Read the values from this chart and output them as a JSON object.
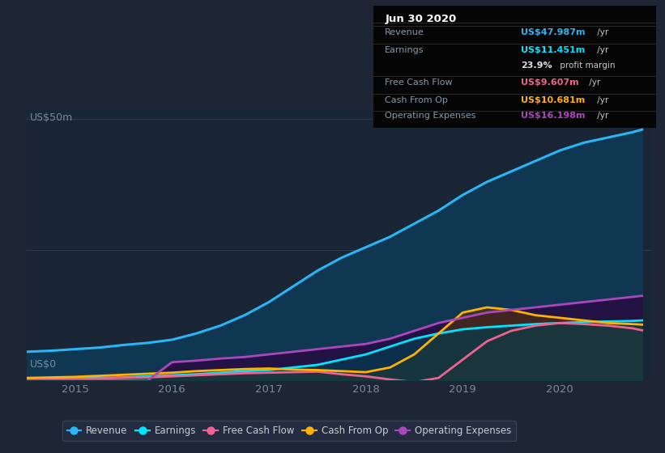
{
  "bg_color": "#1e2535",
  "plot_bg_color": "#1a2535",
  "grid_color": "#2a3a50",
  "ylabel": "US$50m",
  "ylabel0": "US$0",
  "ylim": [
    0,
    52
  ],
  "xlim": [
    2014.5,
    2020.95
  ],
  "xticks": [
    2015,
    2016,
    2017,
    2018,
    2019,
    2020
  ],
  "series": {
    "revenue": {
      "x": [
        2014.5,
        2014.75,
        2015.0,
        2015.25,
        2015.5,
        2015.75,
        2016.0,
        2016.25,
        2016.5,
        2016.75,
        2017.0,
        2017.25,
        2017.5,
        2017.75,
        2018.0,
        2018.25,
        2018.5,
        2018.75,
        2019.0,
        2019.25,
        2019.5,
        2019.75,
        2020.0,
        2020.25,
        2020.5,
        2020.75,
        2020.85
      ],
      "y": [
        5.5,
        5.7,
        6.0,
        6.3,
        6.8,
        7.2,
        7.8,
        9.0,
        10.5,
        12.5,
        15.0,
        18.0,
        21.0,
        23.5,
        25.5,
        27.5,
        30.0,
        32.5,
        35.5,
        38.0,
        40.0,
        42.0,
        44.0,
        45.5,
        46.5,
        47.5,
        48.0
      ],
      "color": "#29b6f6",
      "fill_alpha": 0.7,
      "lw": 2.2
    },
    "earnings": {
      "x": [
        2014.5,
        2014.75,
        2015.0,
        2015.25,
        2015.5,
        2015.75,
        2016.0,
        2016.25,
        2016.5,
        2016.75,
        2017.0,
        2017.25,
        2017.5,
        2017.75,
        2018.0,
        2018.25,
        2018.5,
        2018.75,
        2019.0,
        2019.25,
        2019.5,
        2019.75,
        2020.0,
        2020.25,
        2020.5,
        2020.75,
        2020.85
      ],
      "y": [
        0.3,
        0.35,
        0.4,
        0.5,
        0.6,
        0.8,
        1.0,
        1.2,
        1.5,
        1.8,
        2.0,
        2.5,
        3.0,
        4.0,
        5.0,
        6.5,
        8.0,
        9.0,
        9.8,
        10.2,
        10.5,
        10.8,
        11.0,
        11.2,
        11.3,
        11.4,
        11.5
      ],
      "color": "#00e5ff",
      "fill_alpha": 0.5,
      "lw": 2.0
    },
    "free_cash_flow": {
      "x": [
        2014.5,
        2014.75,
        2015.0,
        2015.25,
        2015.5,
        2015.75,
        2016.0,
        2016.25,
        2016.5,
        2016.75,
        2017.0,
        2017.25,
        2017.5,
        2017.75,
        2018.0,
        2018.25,
        2018.5,
        2018.75,
        2019.0,
        2019.25,
        2019.5,
        2019.75,
        2020.0,
        2020.25,
        2020.5,
        2020.75,
        2020.85
      ],
      "y": [
        0.2,
        0.25,
        0.3,
        0.4,
        0.5,
        0.6,
        0.8,
        1.0,
        1.2,
        1.4,
        1.5,
        1.6,
        1.7,
        1.2,
        0.8,
        0.2,
        -0.3,
        0.5,
        4.0,
        7.5,
        9.5,
        10.5,
        11.0,
        10.8,
        10.5,
        10.0,
        9.6
      ],
      "color": "#f06292",
      "fill_alpha": 0.4,
      "lw": 2.0
    },
    "cash_from_op": {
      "x": [
        2014.5,
        2014.75,
        2015.0,
        2015.25,
        2015.5,
        2015.75,
        2016.0,
        2016.25,
        2016.5,
        2016.75,
        2017.0,
        2017.25,
        2017.5,
        2017.75,
        2018.0,
        2018.25,
        2018.5,
        2018.75,
        2019.0,
        2019.25,
        2019.5,
        2019.75,
        2020.0,
        2020.25,
        2020.5,
        2020.75,
        2020.85
      ],
      "y": [
        0.5,
        0.6,
        0.7,
        0.9,
        1.1,
        1.3,
        1.5,
        1.8,
        2.0,
        2.2,
        2.3,
        2.1,
        2.0,
        1.8,
        1.6,
        2.5,
        5.0,
        9.0,
        13.0,
        14.0,
        13.5,
        12.5,
        12.0,
        11.5,
        11.0,
        10.8,
        10.7
      ],
      "color": "#ffb300",
      "fill_alpha": 0.4,
      "lw": 2.0
    },
    "operating_expenses": {
      "x": [
        2014.5,
        2014.75,
        2015.0,
        2015.25,
        2015.5,
        2015.75,
        2016.0,
        2016.25,
        2016.5,
        2016.75,
        2017.0,
        2017.25,
        2017.5,
        2017.75,
        2018.0,
        2018.25,
        2018.5,
        2018.75,
        2019.0,
        2019.25,
        2019.5,
        2019.75,
        2020.0,
        2020.25,
        2020.5,
        2020.75,
        2020.85
      ],
      "y": [
        0.0,
        0.0,
        0.0,
        0.0,
        0.0,
        0.0,
        3.5,
        3.8,
        4.2,
        4.5,
        5.0,
        5.5,
        6.0,
        6.5,
        7.0,
        8.0,
        9.5,
        11.0,
        12.0,
        13.0,
        13.5,
        14.0,
        14.5,
        15.0,
        15.5,
        16.0,
        16.2
      ],
      "color": "#ab47bc",
      "fill_alpha": 0.5,
      "lw": 2.0
    }
  },
  "legend": [
    {
      "label": "Revenue",
      "color": "#29b6f6"
    },
    {
      "label": "Earnings",
      "color": "#00e5ff"
    },
    {
      "label": "Free Cash Flow",
      "color": "#f06292"
    },
    {
      "label": "Cash From Op",
      "color": "#ffb300"
    },
    {
      "label": "Operating Expenses",
      "color": "#ab47bc"
    }
  ],
  "info_box": {
    "title": "Jun 30 2020",
    "rows": [
      {
        "label": "Revenue",
        "value": "US$47.987m",
        "unit": " /yr",
        "value_color": "#29b6f6",
        "label_color": "#8899aa"
      },
      {
        "label": "Earnings",
        "value": "US$11.451m",
        "unit": " /yr",
        "value_color": "#00e5ff",
        "label_color": "#8899aa"
      },
      {
        "label": "",
        "value": "23.9%",
        "unit": " profit margin",
        "value_color": "#e0e0e0",
        "label_color": "#8899aa"
      },
      {
        "label": "Free Cash Flow",
        "value": "US$9.607m",
        "unit": " /yr",
        "value_color": "#f06292",
        "label_color": "#8899aa"
      },
      {
        "label": "Cash From Op",
        "value": "US$10.681m",
        "unit": " /yr",
        "value_color": "#ffb300",
        "label_color": "#8899aa"
      },
      {
        "label": "Operating Expenses",
        "value": "US$16.198m",
        "unit": " /yr",
        "value_color": "#ab47bc",
        "label_color": "#8899aa"
      }
    ]
  }
}
